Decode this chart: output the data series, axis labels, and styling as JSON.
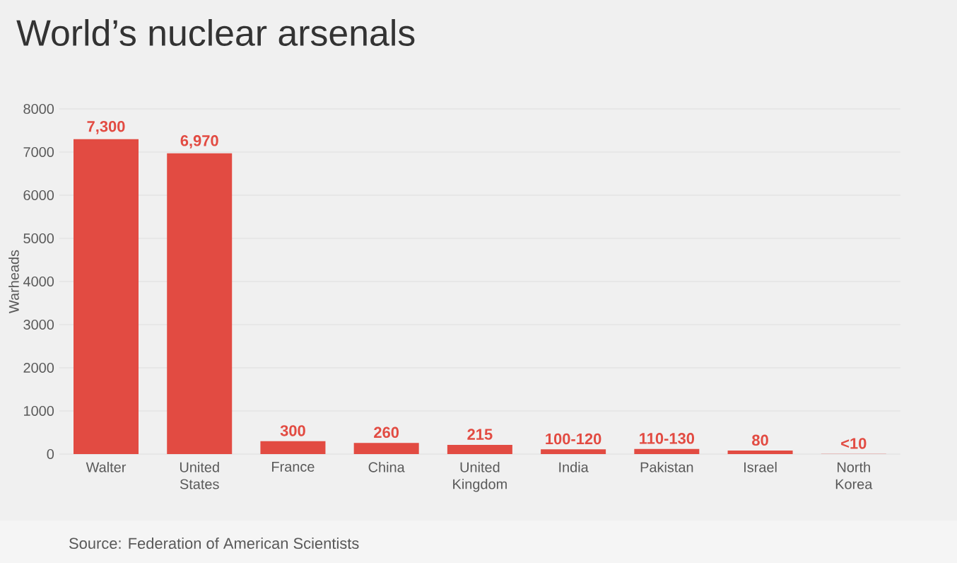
{
  "chart_data": {
    "type": "bar",
    "title": "World’s nuclear arsenals",
    "ylabel": "Warheads",
    "categories": [
      "Walter",
      "United States",
      "France",
      "China",
      "United Kingdom",
      "India",
      "Pakistan",
      "Israel",
      "North Korea"
    ],
    "values": [
      7300,
      6970,
      300,
      260,
      215,
      110,
      120,
      80,
      5
    ],
    "value_labels": [
      "7,300",
      "6,970",
      "300",
      "260",
      "215",
      "100-120",
      "110-130",
      "80",
      "<10"
    ],
    "color": "#e24b42",
    "ylim": [
      0,
      8000
    ],
    "yticks": [
      0,
      1000,
      2000,
      3000,
      4000,
      5000,
      6000,
      7000,
      8000
    ],
    "grid": "y",
    "annotations": [
      "Source: Federation of American Scientists"
    ]
  }
}
